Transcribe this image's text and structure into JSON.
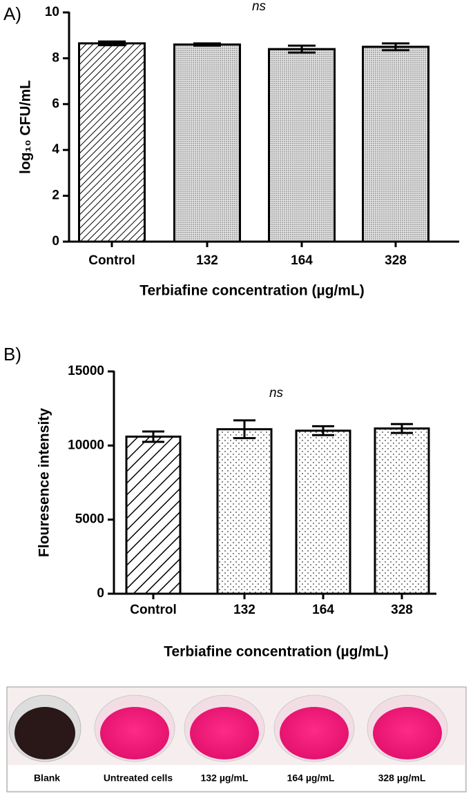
{
  "chart_data": [
    {
      "type": "bar",
      "panel": "A)",
      "annotation": "ns",
      "ylabel": "log₁₀ CFU/mL",
      "xlabel": "Terbiafine concentration (µg/mL)",
      "categories": [
        "Control",
        "132",
        "164",
        "328"
      ],
      "values": [
        8.65,
        8.6,
        8.4,
        8.5
      ],
      "errors": [
        0.08,
        0.05,
        0.15,
        0.15
      ],
      "patterns": [
        "hatch",
        "dots",
        "dots",
        "dots"
      ],
      "color": "#000000",
      "ylim": [
        0,
        10
      ],
      "yticks": [
        0,
        2,
        4,
        6,
        8,
        10
      ]
    },
    {
      "type": "bar",
      "panel": "B)",
      "annotation": "ns",
      "ylabel": "Flouresence intensity",
      "xlabel": "Terbiafine concentration (µg/mL)",
      "categories": [
        "Control",
        "132",
        "164",
        "328"
      ],
      "values": [
        10600,
        11100,
        11000,
        11150
      ],
      "errors": [
        350,
        600,
        300,
        300
      ],
      "patterns": [
        "hatch",
        "dots",
        "dots",
        "dots"
      ],
      "color": "#000000",
      "ylim": [
        0,
        15000
      ],
      "yticks": [
        0,
        5000,
        10000,
        15000
      ]
    }
  ],
  "photo": {
    "labels": [
      "Blank",
      "Untreated cells",
      "132 µg/mL",
      "164 µg/mL",
      "328 µg/mL"
    ]
  }
}
